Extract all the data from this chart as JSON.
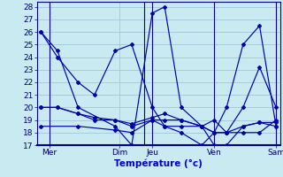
{
  "title": "Température (°c)",
  "bg_color": "#c8eaf0",
  "grid_color": "#a0c8d8",
  "line_color": "#0000aa",
  "sep_color": "#000088",
  "ylim": [
    17,
    28.4
  ],
  "yticks": [
    17,
    18,
    19,
    20,
    21,
    22,
    23,
    24,
    25,
    26,
    27,
    28
  ],
  "xlim": [
    -0.5,
    29
  ],
  "day_labels": [
    "Mer",
    "Dim",
    "Jeu",
    "Ven",
    "Sam"
  ],
  "day_tick_pos": [
    1,
    9.5,
    13.5,
    21,
    28.5
  ],
  "day_sep_pos": [
    1,
    12.5,
    13.5,
    21,
    28.5
  ],
  "lines": [
    {
      "x": [
        0,
        2,
        4.5,
        9,
        11,
        13.5,
        15,
        17,
        19.5,
        21,
        22.5,
        24.5,
        26.5,
        28.5
      ],
      "y": [
        26,
        24.5,
        20,
        18.5,
        17,
        27.5,
        28,
        20,
        18.5,
        19,
        18,
        20,
        23.2,
        20
      ]
    },
    {
      "x": [
        0,
        2,
        4.5,
        6.5,
        9,
        11,
        13.5,
        15,
        17,
        19.5,
        21,
        22.5,
        24.5,
        26.5,
        28.5
      ],
      "y": [
        20,
        20,
        19.5,
        19.2,
        19,
        18.5,
        19,
        19,
        19,
        18.5,
        18,
        18,
        18.5,
        18.8,
        18.8
      ]
    },
    {
      "x": [
        0,
        4.5,
        9,
        11,
        13.5,
        15,
        17,
        19.5,
        21,
        22.5,
        24.5,
        26.5,
        28.5
      ],
      "y": [
        18.5,
        18.5,
        18.2,
        18,
        19,
        18.5,
        18.5,
        18.5,
        18,
        18,
        18,
        18,
        19
      ]
    },
    {
      "x": [
        0,
        2,
        4.5,
        6.5,
        9,
        11,
        13.5,
        15,
        17,
        19.5,
        21,
        22.5,
        24.5,
        26.5,
        28.5
      ],
      "y": [
        26,
        24,
        22,
        21,
        24.5,
        25,
        20,
        18.5,
        18,
        17,
        18,
        20,
        25,
        26.5,
        18.5
      ]
    },
    {
      "x": [
        0,
        2,
        4.5,
        6.5,
        9,
        11,
        13.5,
        15,
        17,
        19.5,
        21,
        22.5,
        24.5,
        26.5,
        28.5
      ],
      "y": [
        20,
        20,
        19.5,
        19,
        19,
        18.7,
        19.2,
        19.5,
        19,
        18.5,
        17,
        17,
        18.5,
        18.8,
        18.5
      ]
    }
  ]
}
